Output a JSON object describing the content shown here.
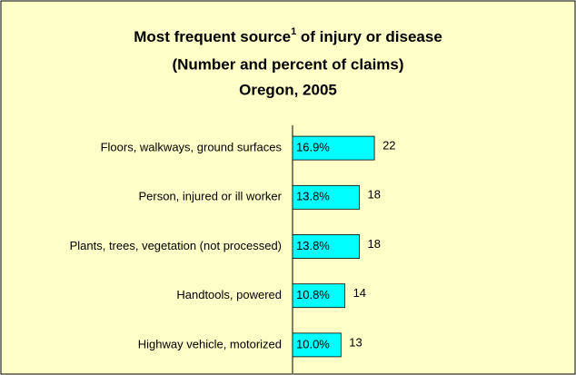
{
  "chart_data": {
    "type": "bar",
    "orientation": "horizontal",
    "title": "Most frequent source",
    "title_superscript": "1",
    "title_rest": " of injury or disease",
    "subtitle": "(Number and percent of claims)",
    "subtitle2": "Oregon, 2005",
    "categories": [
      "Floors, walkways, ground surfaces",
      "Person, injured or ill worker",
      "Plants, trees, vegetation (not processed)",
      "Handtools, powered",
      "Highway vehicle, motorized"
    ],
    "values": [
      16.9,
      13.8,
      13.8,
      10.8,
      10.0
    ],
    "value_labels": [
      "16.9%",
      "13.8%",
      "13.8%",
      "10.8%",
      "10.0%"
    ],
    "counts": [
      22,
      18,
      18,
      14,
      13
    ],
    "color": "#00ffff"
  }
}
